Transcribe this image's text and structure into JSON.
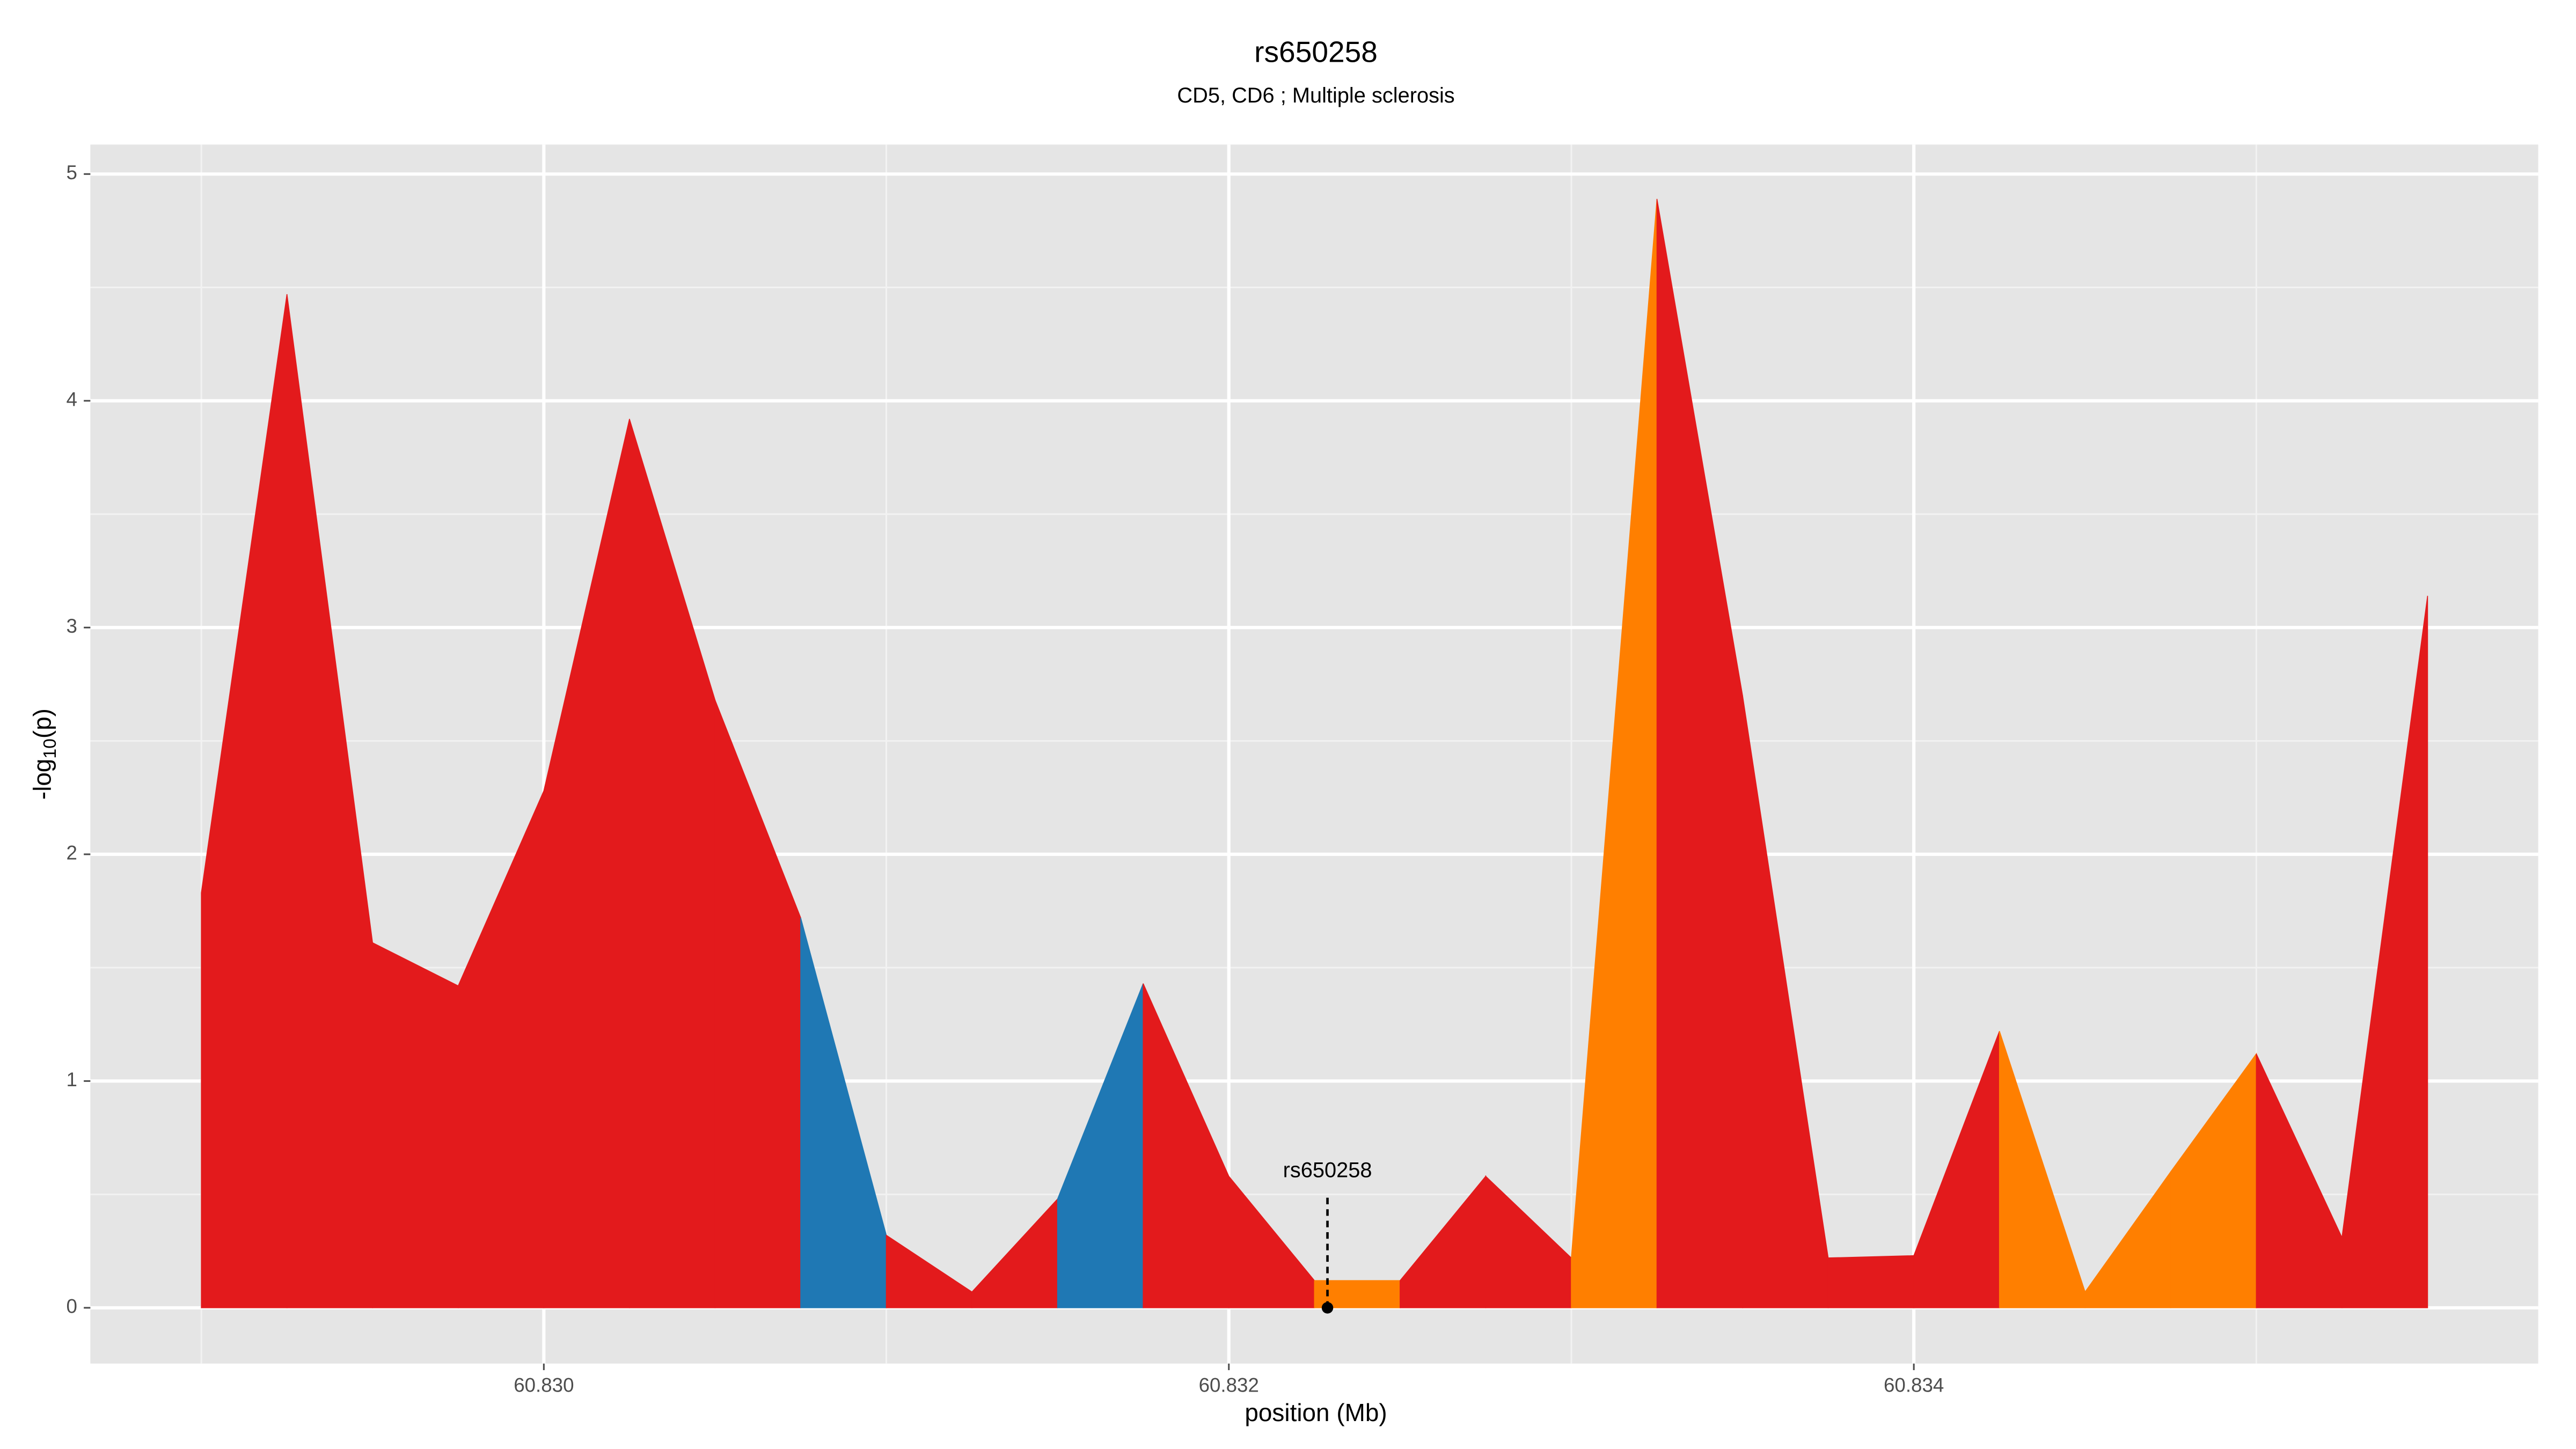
{
  "chart_data": {
    "type": "area",
    "title": "rs650258",
    "subtitle": "CD5, CD6 ; Multiple sclerosis",
    "xlabel": "position (Mb)",
    "ylabel": [
      "-log",
      "10",
      "(p)"
    ],
    "x": [
      60.829,
      60.82925,
      60.8295,
      60.82975,
      60.83,
      60.83025,
      60.8305,
      60.83075,
      60.831,
      60.83125,
      60.8315,
      60.83175,
      60.832,
      60.83225,
      60.8325,
      60.83275,
      60.833,
      60.83325,
      60.8335,
      60.83375,
      60.834,
      60.83425,
      60.8345,
      60.83475,
      60.835,
      60.83525,
      60.8355
    ],
    "values": [
      1.83,
      4.47,
      1.61,
      1.42,
      2.28,
      3.92,
      2.68,
      1.72,
      0.32,
      0.07,
      0.48,
      1.43,
      0.58,
      0.12,
      0.12,
      0.58,
      0.22,
      4.89,
      2.7,
      0.22,
      0.23,
      1.22,
      0.07,
      0.6,
      1.12,
      0.31,
      3.14
    ],
    "segment_colors": [
      "#e31a1c",
      "#e31a1c",
      "#e31a1c",
      "#e31a1c",
      "#e31a1c",
      "#e31a1c",
      "#e31a1c",
      "#1f78b4",
      "#e31a1c",
      "#e31a1c",
      "#1f78b4",
      "#e31a1c",
      "#e31a1c",
      "#ff7f00",
      "#e31a1c",
      "#e31a1c",
      "#ff7f00",
      "#e31a1c",
      "#e31a1c",
      "#e31a1c",
      "#e31a1c",
      "#ff7f00",
      "#ff7f00",
      "#ff7f00",
      "#e31a1c",
      "#e31a1c"
    ],
    "annotation": {
      "text": "rs650258",
      "x": 60.832288,
      "y": 0
    },
    "xlim": [
      60.828676,
      60.835823
    ],
    "ylim": [
      -0.246,
      5.13
    ],
    "xticks": [
      {
        "value": 60.83,
        "label": "60.830"
      },
      {
        "value": 60.832,
        "label": "60.832"
      },
      {
        "value": 60.834,
        "label": "60.834"
      }
    ],
    "xminor": [
      60.829,
      60.831,
      60.833,
      60.835
    ],
    "yticks": [
      0,
      1,
      2,
      3,
      4,
      5
    ],
    "yminor": [
      0.5,
      1.5,
      2.5,
      3.5,
      4.5
    ],
    "grid": true
  }
}
